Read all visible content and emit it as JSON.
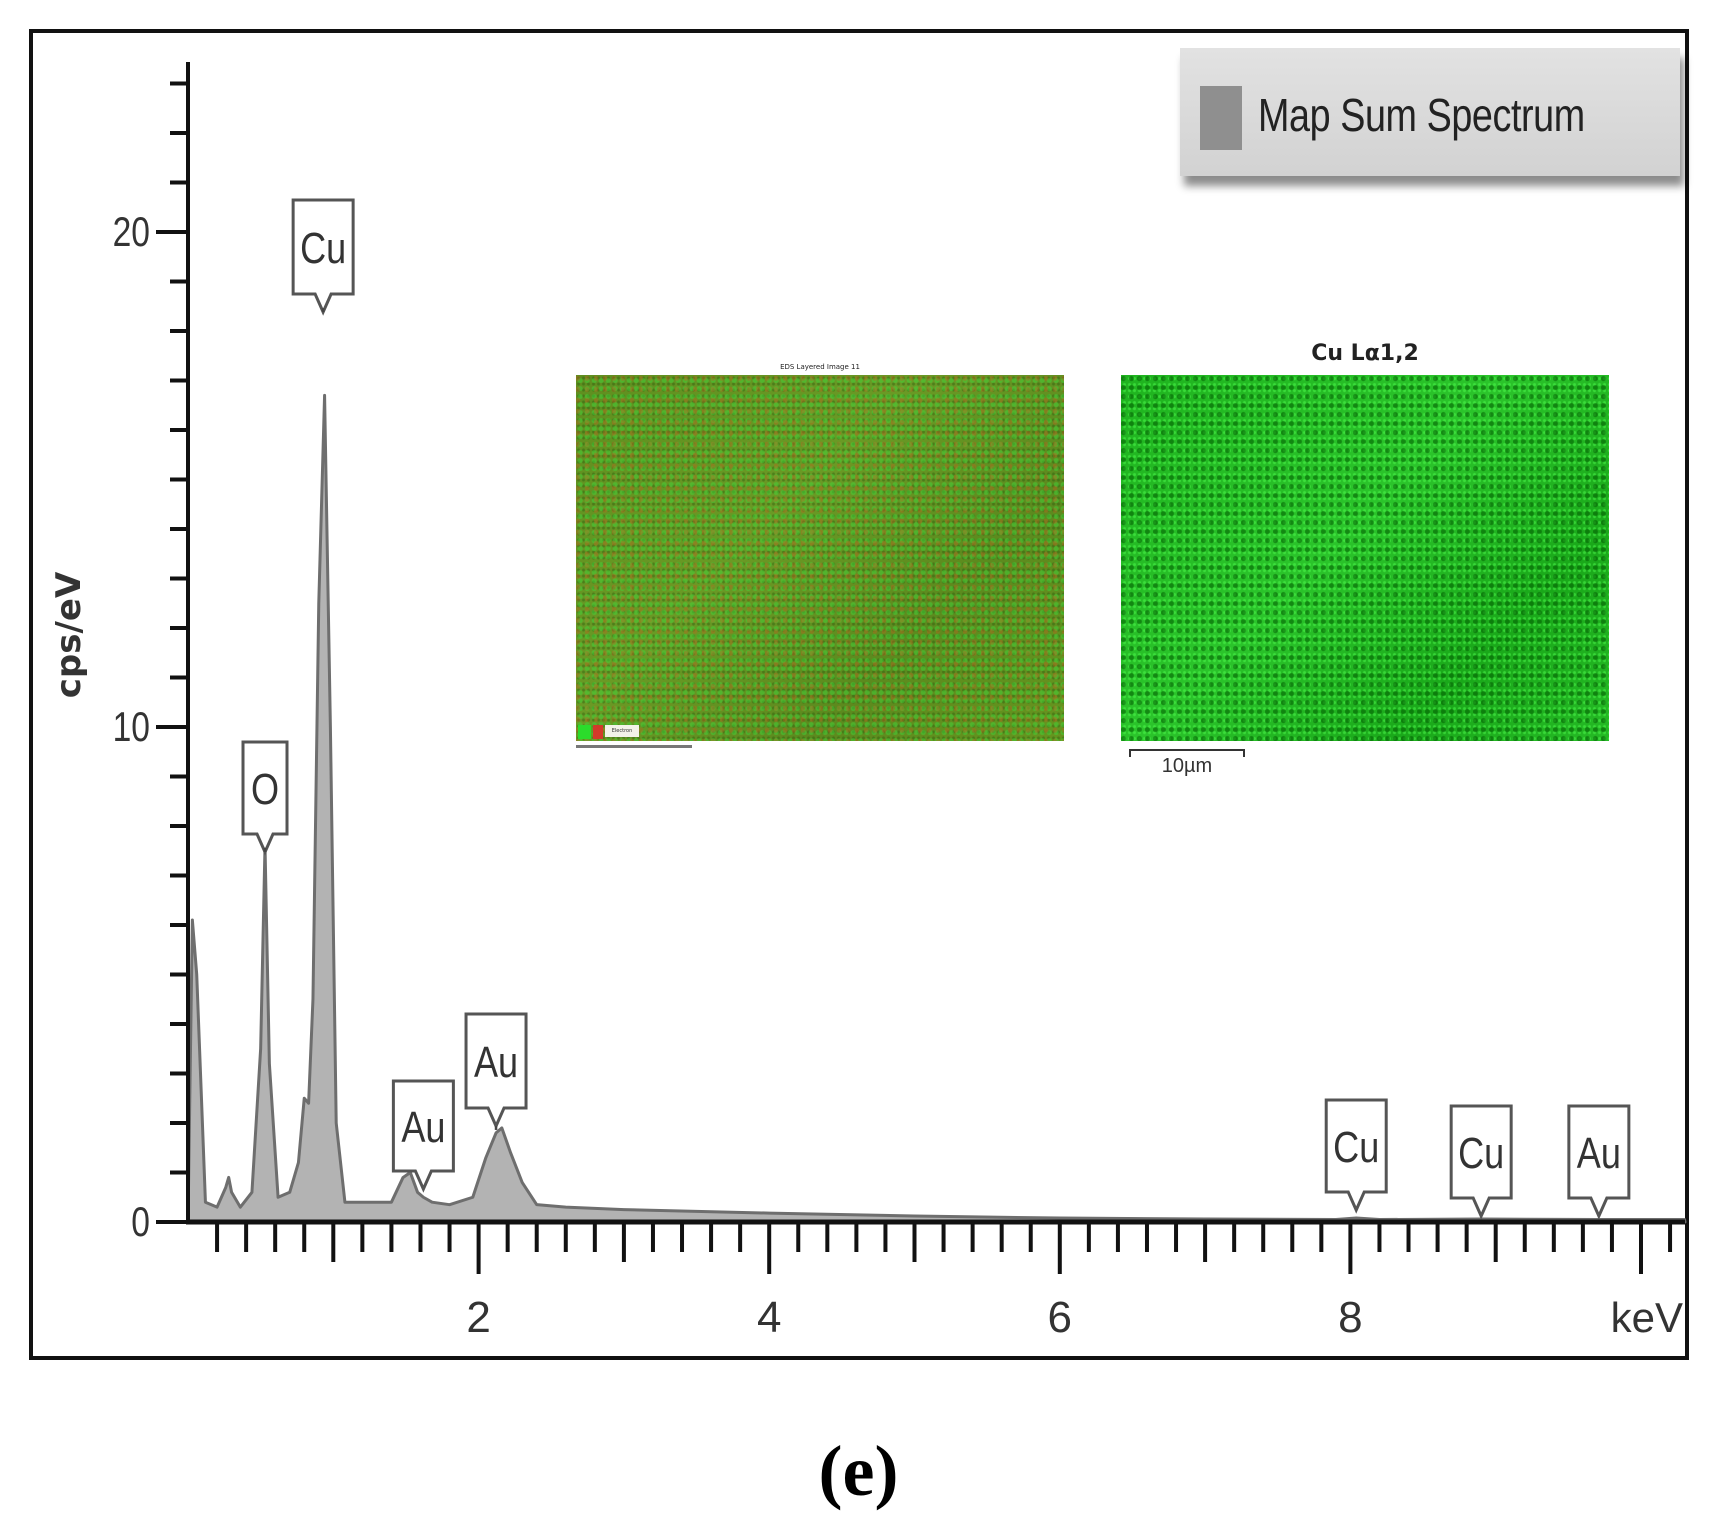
{
  "chart_data": {
    "type": "area",
    "title": "",
    "xlabel": "keV",
    "ylabel": "cps/eV",
    "xlim": [
      0,
      10.3
    ],
    "ylim": [
      0,
      23
    ],
    "x_ticks": [
      2,
      4,
      6,
      8
    ],
    "y_ticks": [
      0,
      10,
      20
    ],
    "minor_x_step": 0.2,
    "minor_y_step": 1,
    "legend": {
      "position": "top-right",
      "entries": [
        "Map Sum Spectrum"
      ]
    },
    "series": [
      {
        "name": "Map Sum Spectrum",
        "color": "#8f8f8f",
        "x": [
          0.0,
          0.03,
          0.06,
          0.12,
          0.2,
          0.26,
          0.28,
          0.3,
          0.36,
          0.44,
          0.5,
          0.53,
          0.56,
          0.62,
          0.7,
          0.76,
          0.8,
          0.83,
          0.86,
          0.9,
          0.94,
          0.98,
          1.02,
          1.08,
          1.2,
          1.4,
          1.48,
          1.53,
          1.58,
          1.62,
          1.68,
          1.8,
          1.96,
          2.05,
          2.12,
          2.16,
          2.22,
          2.3,
          2.4,
          2.6,
          3.0,
          4.0,
          5.0,
          6.0,
          7.0,
          7.9,
          8.04,
          8.2,
          8.9,
          9.7,
          10.3
        ],
        "values": [
          0.0,
          6.1,
          5.0,
          0.4,
          0.3,
          0.7,
          0.9,
          0.6,
          0.3,
          0.6,
          3.5,
          7.6,
          3.2,
          0.5,
          0.6,
          1.2,
          2.5,
          2.4,
          4.5,
          12.5,
          16.7,
          10.0,
          2.0,
          0.4,
          0.4,
          0.4,
          0.9,
          1.0,
          0.6,
          0.5,
          0.4,
          0.35,
          0.5,
          1.3,
          1.8,
          1.9,
          1.4,
          0.8,
          0.35,
          0.3,
          0.25,
          0.18,
          0.12,
          0.08,
          0.06,
          0.05,
          0.08,
          0.05,
          0.06,
          0.05,
          0.05
        ]
      }
    ],
    "annotations": [
      {
        "label": "O",
        "x": 0.53,
        "y": 7.6
      },
      {
        "label": "Cu",
        "x": 0.93,
        "y": 18.5
      },
      {
        "label": "Au",
        "x": 1.62,
        "y": 0.5
      },
      {
        "label": "Au",
        "x": 2.12,
        "y": 1.9
      },
      {
        "label": "Cu",
        "x": 8.04,
        "y": 0.05
      },
      {
        "label": "Cu",
        "x": 8.9,
        "y": 0.05
      },
      {
        "label": "Au",
        "x": 9.71,
        "y": 0.05
      }
    ],
    "insets": [
      {
        "title": "EDS Layered Image 11",
        "type": "image",
        "description": "red/green layered EDS map"
      },
      {
        "title": "Cu Lα1,2",
        "type": "image",
        "description": "green Cu elemental map",
        "scale_bar": "10µm"
      }
    ]
  },
  "legend": {
    "label": "Map Sum Spectrum",
    "swatch_color": "#8f8f8f"
  },
  "axes": {
    "ylabel": "cps/eV",
    "xunit": "keV",
    "ytick_labels": [
      "0",
      "10",
      "20"
    ],
    "xtick_labels": [
      "2",
      "4",
      "6",
      "8"
    ]
  },
  "insets": {
    "left": {
      "title": "EDS Layered Image 11",
      "legend_text": "Electron"
    },
    "right": {
      "title": "Cu Lα1,2",
      "scale_bar": "10µm"
    }
  },
  "caption": "(e)"
}
